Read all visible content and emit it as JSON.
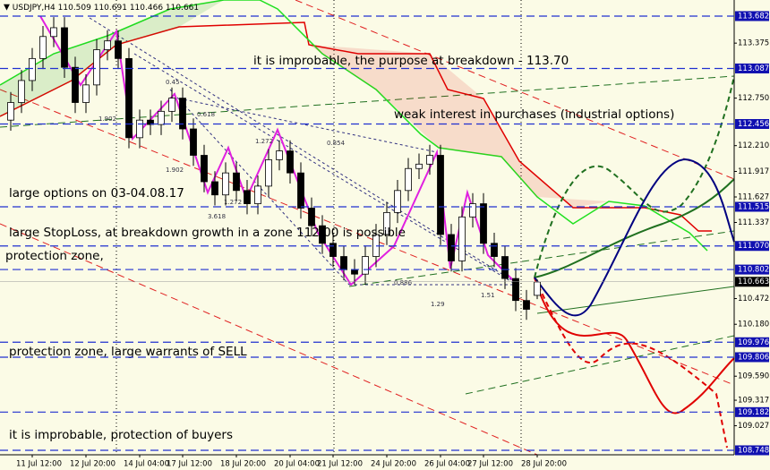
{
  "chart_data": {
    "type": "candlestick",
    "symbol": "USDJPY,H4",
    "ylim": [
      108.697,
      113.865
    ],
    "yticks": [
      113.375,
      {
        "value": 112.75,
        "label": "112.750"
      },
      {
        "value": 112.21,
        "label": "112.210"
      },
      111.917,
      111.627,
      111.337,
      110.472,
      {
        "value": 110.18,
        "label": "110.180"
      },
      {
        "value": 109.59,
        "label": "109.590"
      },
      109.317,
      109.027
    ],
    "levels": [
      113.682,
      113.087,
      112.456,
      111.515,
      {
        "value": 111.07,
        "label": "111.070"
      },
      110.802,
      109.976,
      109.806,
      109.182,
      108.748
    ],
    "current_price": 110.663,
    "categories": [
      null,
      null,
      "11 Jul 12:00",
      null,
      null,
      null,
      null,
      "12 Jul 20:00",
      null,
      null,
      null,
      null,
      "14 Jul 04:00",
      null,
      null,
      null,
      "17 Jul 12:00",
      null,
      null,
      null,
      null,
      "18 Jul 20:00",
      null,
      null,
      null,
      null,
      "20 Jul 04:00",
      null,
      null,
      null,
      "21 Jul 12:00",
      null,
      null,
      null,
      null,
      "24 Jul 20:00",
      null,
      null,
      null,
      null,
      "26 Jul 04:00",
      null,
      null,
      null,
      "27 Jul 12:00",
      null,
      null,
      null,
      null,
      "28 Jul 20:00"
    ],
    "candles": [
      [
        112.5,
        112.82,
        112.38,
        112.7
      ],
      [
        112.7,
        113.07,
        112.58,
        112.95
      ],
      [
        112.95,
        113.32,
        112.83,
        113.2
      ],
      [
        113.2,
        113.57,
        113.08,
        113.45
      ],
      [
        113.45,
        113.67,
        113.33,
        113.55
      ],
      [
        113.55,
        113.67,
        112.98,
        113.1
      ],
      [
        113.1,
        113.22,
        112.58,
        112.7
      ],
      [
        112.7,
        113.02,
        112.58,
        112.9
      ],
      [
        112.9,
        113.42,
        112.78,
        113.3
      ],
      [
        113.3,
        113.52,
        113.18,
        113.4
      ],
      [
        113.4,
        113.52,
        113.08,
        113.2
      ],
      [
        113.2,
        113.32,
        112.18,
        112.3
      ],
      [
        112.3,
        112.62,
        112.18,
        112.5
      ],
      [
        112.5,
        112.62,
        112.33,
        112.45
      ],
      [
        112.45,
        112.72,
        112.33,
        112.6
      ],
      [
        112.6,
        112.87,
        112.48,
        112.75
      ],
      [
        112.75,
        112.87,
        112.28,
        112.4
      ],
      [
        112.4,
        112.52,
        111.98,
        112.1
      ],
      [
        112.1,
        112.22,
        111.68,
        111.8
      ],
      [
        111.8,
        111.92,
        111.53,
        111.65
      ],
      [
        111.65,
        112.02,
        111.53,
        111.9
      ],
      [
        111.9,
        112.02,
        111.58,
        111.7
      ],
      [
        111.7,
        111.82,
        111.43,
        111.55
      ],
      [
        111.55,
        111.87,
        111.43,
        111.75
      ],
      [
        111.75,
        112.17,
        111.63,
        112.05
      ],
      [
        112.05,
        112.27,
        111.93,
        112.15
      ],
      [
        112.15,
        112.27,
        111.78,
        111.9
      ],
      [
        111.9,
        112.02,
        111.38,
        111.5
      ],
      [
        111.5,
        111.62,
        111.18,
        111.3
      ],
      [
        111.3,
        111.42,
        110.98,
        111.1
      ],
      [
        111.1,
        111.22,
        110.83,
        110.95
      ],
      [
        110.95,
        111.07,
        110.68,
        110.8
      ],
      [
        110.8,
        110.92,
        110.63,
        110.75
      ],
      [
        110.75,
        111.07,
        110.63,
        110.95
      ],
      [
        110.95,
        111.32,
        110.83,
        111.2
      ],
      [
        111.2,
        111.57,
        111.08,
        111.45
      ],
      [
        111.45,
        111.82,
        111.33,
        111.7
      ],
      [
        111.7,
        112.07,
        111.58,
        111.95
      ],
      [
        111.95,
        112.12,
        111.83,
        112.0
      ],
      [
        112.0,
        112.22,
        111.88,
        112.1
      ],
      [
        112.1,
        112.22,
        111.08,
        111.2
      ],
      [
        111.2,
        111.32,
        110.78,
        110.9
      ],
      [
        110.9,
        111.52,
        110.78,
        111.4
      ],
      [
        111.4,
        111.67,
        111.28,
        111.55
      ],
      [
        111.55,
        111.67,
        110.98,
        111.1
      ],
      [
        111.1,
        111.22,
        110.83,
        110.95
      ],
      [
        110.95,
        111.07,
        110.58,
        110.7
      ],
      [
        110.7,
        110.82,
        110.33,
        110.45
      ],
      [
        110.45,
        110.57,
        110.23,
        110.35
      ],
      [
        110.509,
        110.691,
        110.466,
        110.661
      ]
    ],
    "annotations": [
      "it is improbable, the purpose at breakdown - 113.70",
      "weak interest in purchases (industrial options)",
      "large options on 03-04.08.17",
      "large StopLoss, at breakdown growth in a zone 112.00 is possible",
      "protection zone,",
      "protection zone, large warrants of SELL",
      "it is improbable, protection of buyers"
    ],
    "fib_labels": [
      "1.902",
      "0.45",
      "0.618",
      "1.272",
      "0.854",
      "1.902",
      "3.618",
      "1.272",
      "0.886",
      "1.51",
      "1.29"
    ]
  }
}
